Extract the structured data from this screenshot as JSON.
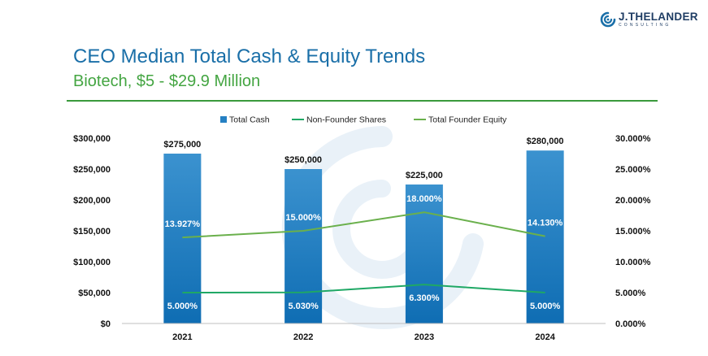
{
  "brand": {
    "logo_icon": "spiral-logo-icon",
    "name": "J.THELANDER",
    "tagline": "CONSULTING"
  },
  "header": {
    "title": "CEO Median Total Cash & Equity Trends",
    "subtitle": "Biotech, $5 - $29.9 Million"
  },
  "colors": {
    "title": "#1a6fa8",
    "subtitle": "#44a542",
    "bar": "#2580c3",
    "non_founder_line": "#1fa865",
    "founder_line": "#6ab04c"
  },
  "chart_data": {
    "type": "bar",
    "categories": [
      "2021",
      "2022",
      "2023",
      "2024"
    ],
    "series": [
      {
        "name": "Total Cash",
        "type": "bar",
        "axis": "left",
        "values": [
          275000,
          250000,
          225000,
          280000
        ],
        "labels": [
          "$275,000",
          "$250,000",
          "$225,000",
          "$280,000"
        ]
      },
      {
        "name": "Non-Founder Shares",
        "type": "line",
        "axis": "right",
        "values": [
          5.0,
          5.03,
          6.3,
          5.0
        ],
        "labels": [
          "5.000%",
          "5.030%",
          "6.300%",
          "5.000%"
        ]
      },
      {
        "name": "Total Founder Equity",
        "type": "line",
        "axis": "right",
        "values": [
          13.927,
          15.0,
          18.0,
          14.13
        ],
        "labels": [
          "13.927%",
          "15.000%",
          "18.000%",
          "14.130%"
        ]
      }
    ],
    "y_left": {
      "range": [
        0,
        300000
      ],
      "ticks": [
        0,
        50000,
        100000,
        150000,
        200000,
        250000,
        300000
      ],
      "tick_labels": [
        "$0",
        "$50,000",
        "$100,000",
        "$150,000",
        "$200,000",
        "$250,000",
        "$300,000"
      ]
    },
    "y_right": {
      "range": [
        0,
        30
      ],
      "ticks": [
        0,
        5,
        10,
        15,
        20,
        25,
        30
      ],
      "tick_labels": [
        "0.000%",
        "5.000%",
        "10.000%",
        "15.000%",
        "20.000%",
        "25.000%",
        "30.000%"
      ]
    },
    "grid": false,
    "legend": "top-center"
  }
}
